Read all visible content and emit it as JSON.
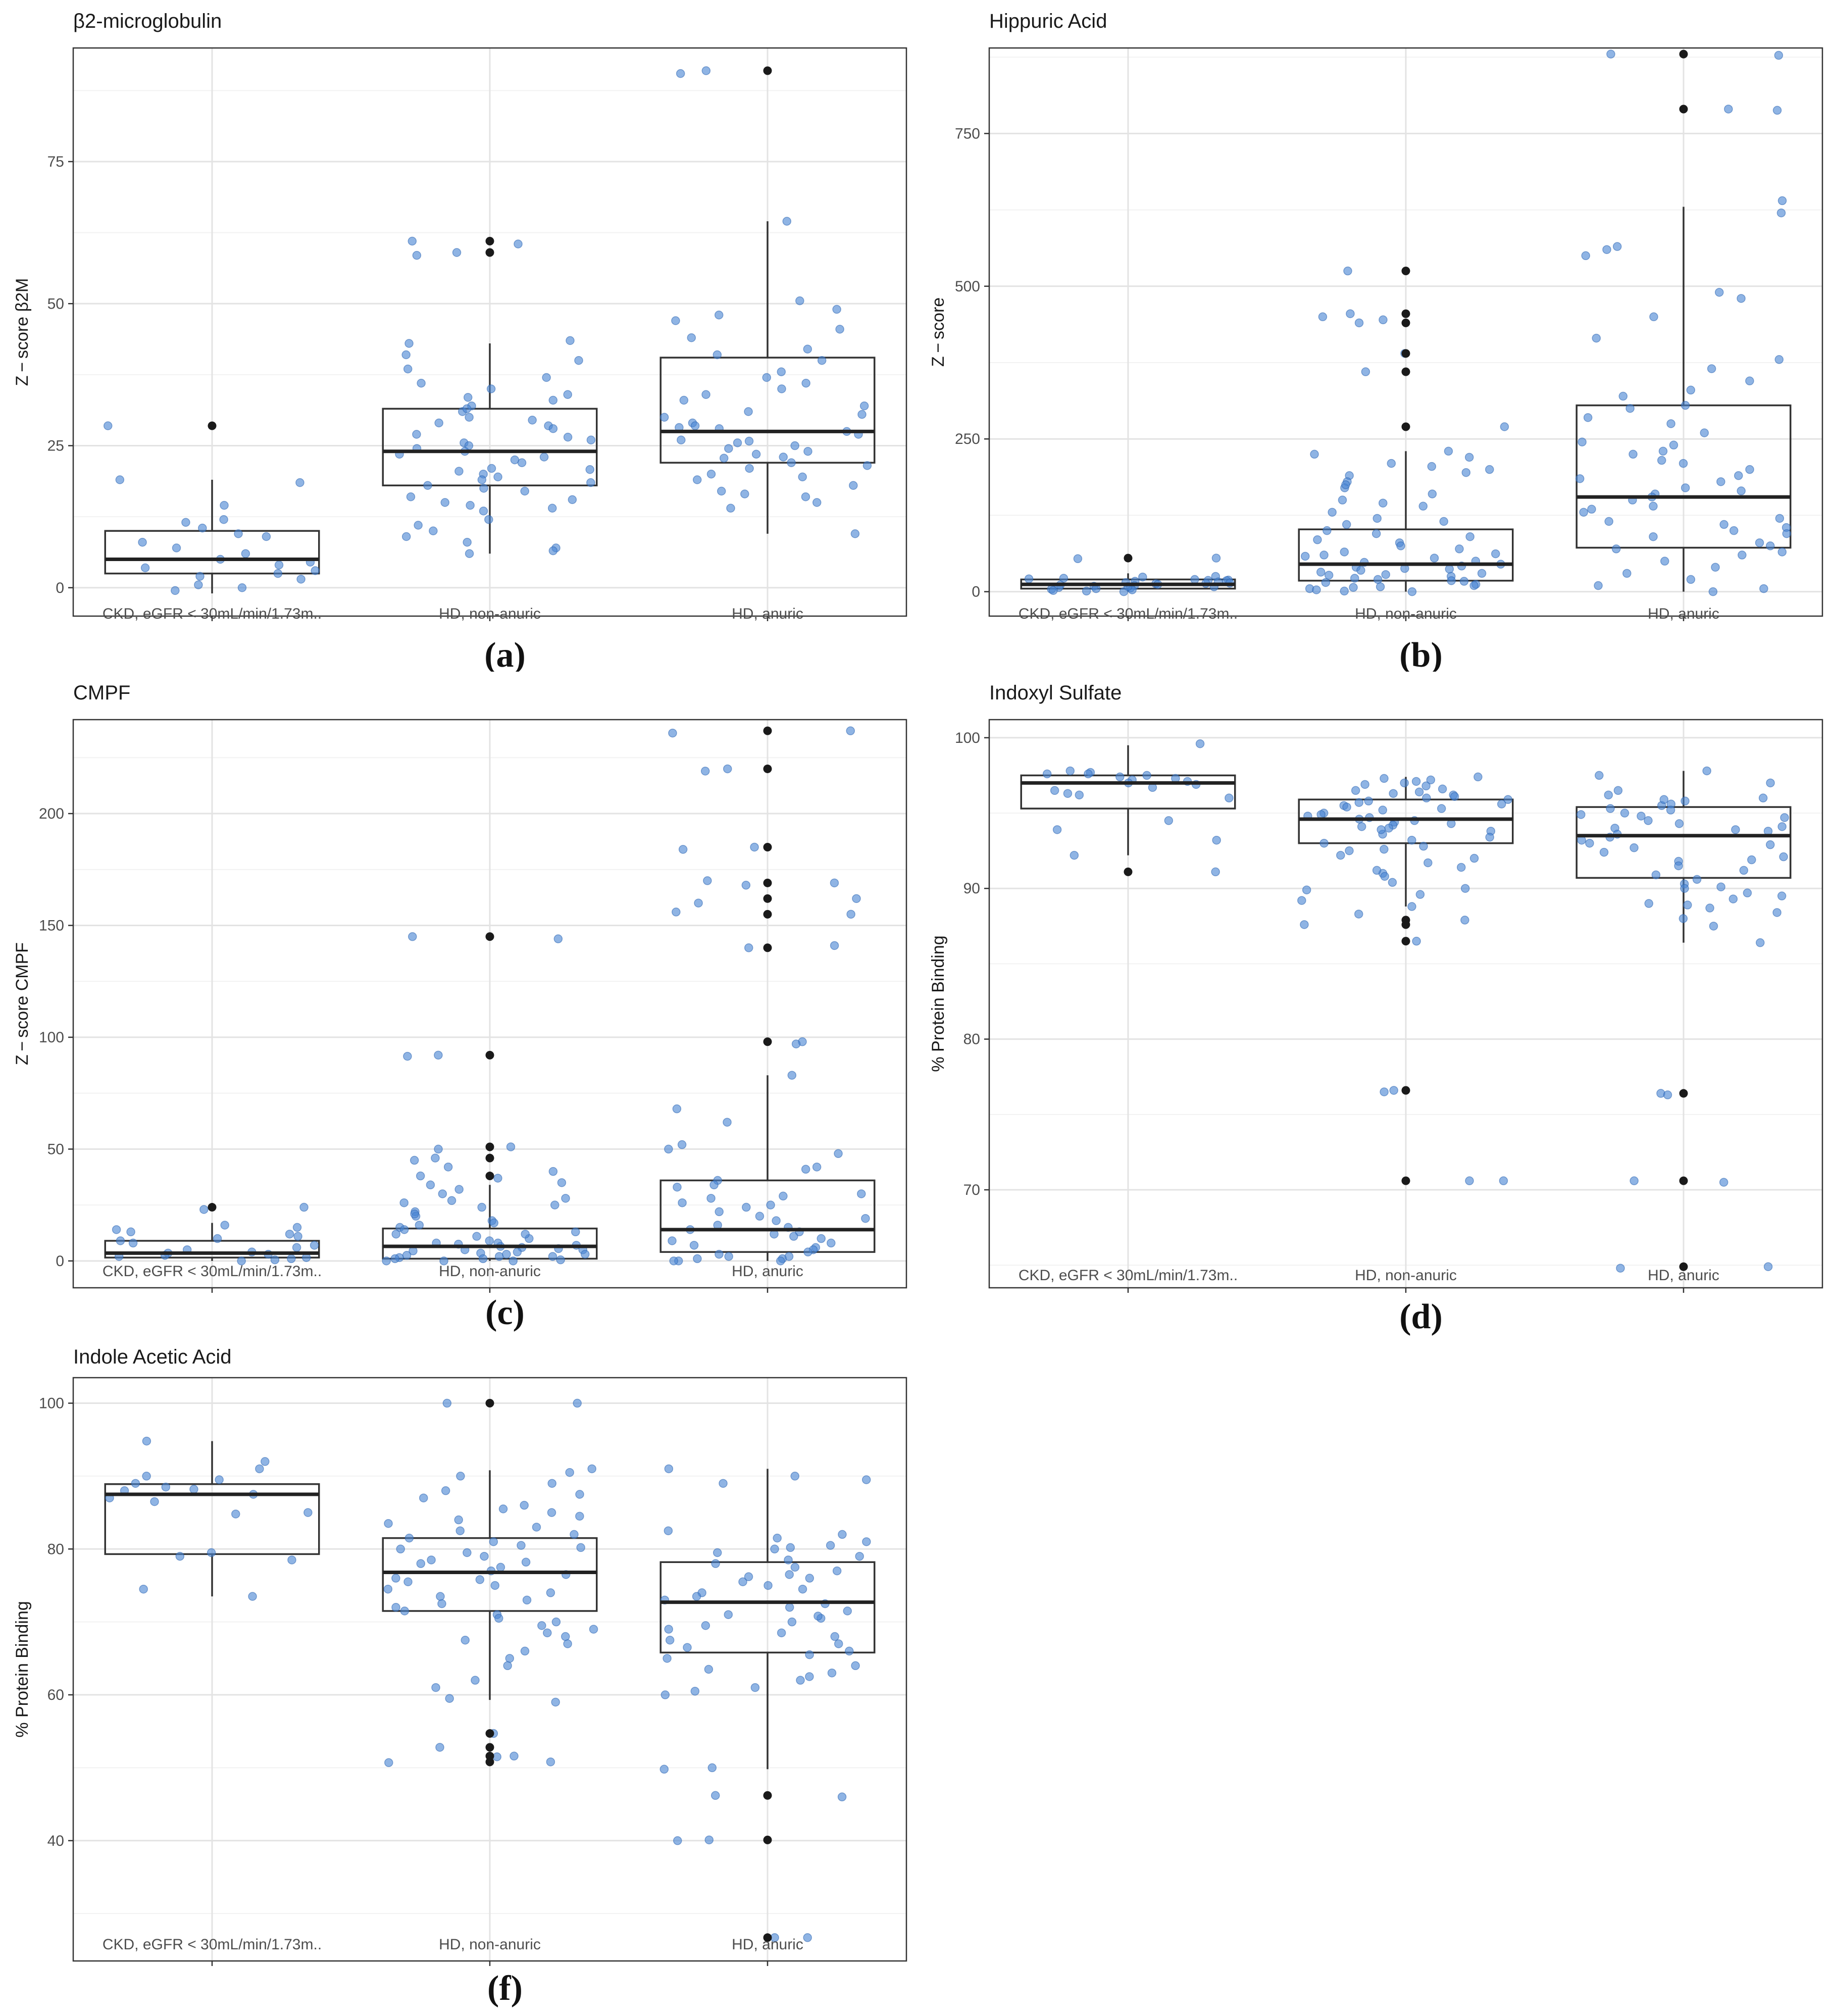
{
  "chart_data": [
    {
      "type": "boxplot",
      "title": "β2-microglobulin",
      "ylabel": "Z − score β2M",
      "xlabel": "",
      "categories": [
        "CKD, eGFR < 30mL/min/1.73m..",
        "HD, non-anuric",
        "HD, anuric"
      ],
      "ylim": [
        -5,
        95
      ],
      "yticks": [
        0,
        25,
        50,
        75
      ],
      "grid": true,
      "panel_label": "(a)",
      "boxes": [
        {
          "q1": 2.5,
          "median": 5,
          "q3": 10,
          "whisker_low": -1,
          "whisker_high": 19,
          "outliers": [
            28.5
          ]
        },
        {
          "q1": 18,
          "median": 24,
          "q3": 31.5,
          "whisker_low": 6,
          "whisker_high": 43,
          "outliers": [
            59,
            61
          ]
        },
        {
          "q1": 22,
          "median": 27.5,
          "q3": 40.5,
          "whisker_low": 9.5,
          "whisker_high": 64.5,
          "outliers": [
            91
          ]
        }
      ],
      "points": [
        [
          28.5,
          18.5,
          19,
          14.5,
          11.5,
          10.5,
          9.5,
          8,
          7,
          5,
          4.5,
          4,
          3.5,
          3,
          2.5,
          2,
          1.5,
          0.5,
          0,
          -0.5,
          9,
          12,
          6
        ],
        [
          61,
          59,
          58.5,
          60.5,
          43,
          43.5,
          40,
          38.5,
          37,
          36,
          35,
          34,
          33,
          32,
          31,
          30,
          29,
          28.5,
          28,
          27,
          26,
          25.5,
          25,
          24.5,
          24,
          23.5,
          23,
          22.5,
          22,
          21,
          20.5,
          20,
          19.5,
          19,
          18.5,
          18,
          17,
          16,
          15,
          14.5,
          14,
          13.5,
          12,
          11,
          10,
          9,
          8,
          7,
          6.5,
          6,
          29.5,
          31.5,
          26.5,
          33.5,
          41,
          20.8,
          17.5,
          15.5
        ],
        [
          91,
          90.5,
          64.5,
          50.5,
          49,
          48,
          47,
          45.5,
          44,
          42,
          40,
          38,
          36,
          35,
          33,
          32,
          31,
          30,
          29,
          28.5,
          28,
          27.5,
          27,
          26,
          25.5,
          25,
          24.5,
          24,
          23.5,
          23,
          22,
          21.5,
          21,
          20,
          19.5,
          19,
          18,
          17,
          16.5,
          16,
          15,
          14,
          9.5,
          34,
          37,
          41,
          25.8,
          28.2,
          30.5,
          22.8
        ]
      ]
    },
    {
      "type": "boxplot",
      "title": "Hippuric Acid",
      "ylabel": "Z − score",
      "xlabel": "",
      "categories": [
        "CKD, eGFR < 30mL/min/1.73m..",
        "HD, non-anuric",
        "HD, anuric"
      ],
      "ylim": [
        -40,
        890
      ],
      "yticks": [
        0,
        250,
        500,
        750
      ],
      "grid": true,
      "panel_label": "(b)",
      "boxes": [
        {
          "q1": 5,
          "median": 12,
          "q3": 20,
          "whisker_low": 0,
          "whisker_high": 30,
          "outliers": [
            55
          ]
        },
        {
          "q1": 18,
          "median": 45,
          "q3": 102,
          "whisker_low": 0,
          "whisker_high": 230,
          "outliers": [
            270,
            360,
            390,
            440,
            455,
            525
          ]
        },
        {
          "q1": 72,
          "median": 155,
          "q3": 305,
          "whisker_low": 0,
          "whisker_high": 630,
          "outliers": [
            790,
            880
          ]
        }
      ],
      "points": [
        [
          55,
          54,
          25,
          24,
          22,
          21,
          20,
          19,
          18,
          17,
          16,
          15,
          14,
          13,
          12,
          11,
          10,
          9,
          8,
          7,
          6,
          5,
          4,
          3,
          2,
          1,
          0,
          18.5,
          13.5,
          8.5
        ],
        [
          525,
          455,
          450,
          440,
          445,
          390,
          360,
          270,
          230,
          220,
          210,
          200,
          195,
          190,
          180,
          170,
          160,
          150,
          140,
          130,
          120,
          110,
          100,
          95,
          90,
          85,
          80,
          75,
          70,
          65,
          60,
          55,
          50,
          48,
          45,
          42,
          40,
          38,
          35,
          32,
          30,
          28,
          25,
          22,
          20,
          18,
          15,
          12,
          10,
          8,
          5,
          3,
          1,
          0,
          62,
          58,
          37,
          27,
          17,
          7,
          115,
          145,
          175,
          205,
          225
        ],
        [
          880,
          878,
          790,
          788,
          640,
          620,
          565,
          560,
          550,
          490,
          480,
          450,
          415,
          380,
          365,
          345,
          330,
          320,
          305,
          300,
          285,
          275,
          260,
          240,
          230,
          225,
          210,
          200,
          190,
          180,
          170,
          160,
          155,
          150,
          140,
          130,
          120,
          110,
          105,
          100,
          95,
          90,
          80,
          75,
          70,
          65,
          60,
          50,
          40,
          30,
          20,
          10,
          5,
          0,
          115,
          135,
          165,
          185,
          215,
          245
        ]
      ]
    },
    {
      "type": "boxplot",
      "title": "CMPF",
      "ylabel": "Z − score CMPF",
      "xlabel": "",
      "categories": [
        "CKD, eGFR < 30mL/min/1.73m..",
        "HD, non-anuric",
        "HD, anuric"
      ],
      "ylim": [
        -12,
        242
      ],
      "yticks": [
        0,
        50,
        100,
        150,
        200
      ],
      "grid": true,
      "panel_label": "(c)",
      "boxes": [
        {
          "q1": 1.5,
          "median": 3.5,
          "q3": 9,
          "whisker_low": 0,
          "whisker_high": 17,
          "outliers": [
            24
          ]
        },
        {
          "q1": 1,
          "median": 6.5,
          "q3": 14.5,
          "whisker_low": 0,
          "whisker_high": 34,
          "outliers": [
            38,
            46,
            51,
            92,
            145
          ]
        },
        {
          "q1": 4,
          "median": 14,
          "q3": 36,
          "whisker_low": 0,
          "whisker_high": 83,
          "outliers": [
            98,
            140,
            155,
            162,
            169,
            185,
            220,
            237
          ]
        }
      ],
      "points": [
        [
          24,
          23,
          16,
          15,
          13,
          12,
          10,
          9,
          8,
          7,
          6,
          5,
          4,
          3.5,
          3,
          2.5,
          2,
          1.5,
          1,
          0.5,
          0,
          11,
          14
        ],
        [
          145,
          144,
          92,
          91.5,
          51,
          50,
          46,
          45,
          38,
          37,
          34,
          32,
          30,
          28,
          26,
          24,
          22,
          20,
          18,
          16,
          15,
          14,
          13,
          12,
          11,
          10,
          9,
          8,
          7.5,
          7,
          6.5,
          6,
          5.5,
          5,
          4.5,
          4,
          3.5,
          3,
          2.5,
          2,
          1.5,
          1,
          0.5,
          0,
          0,
          0,
          1,
          2,
          3,
          5,
          8,
          12,
          17,
          21,
          25,
          27,
          35,
          40,
          42
        ],
        [
          237,
          236,
          220,
          219,
          185,
          184,
          170,
          169,
          168,
          162,
          160,
          156,
          155,
          141,
          140,
          98,
          97,
          83,
          68,
          62,
          52,
          50,
          48,
          42,
          41,
          36,
          34,
          30,
          28,
          26,
          25,
          22,
          20,
          18,
          16,
          15,
          14,
          13,
          12,
          10,
          9,
          8,
          7,
          6,
          5,
          4,
          3,
          2,
          1,
          0,
          0,
          0,
          1,
          2,
          11,
          19,
          24,
          29,
          33
        ]
      ]
    },
    {
      "type": "boxplot",
      "title": "Indoxyl Sulfate",
      "ylabel": "% Protein Binding",
      "xlabel": "",
      "categories": [
        "CKD, eGFR < 30mL/min/1.73m..",
        "HD, non-anuric",
        "HD, anuric"
      ],
      "ylim": [
        63.5,
        101.2
      ],
      "yticks": [
        70,
        80,
        90,
        100
      ],
      "grid": true,
      "panel_label": "(d)",
      "boxes": [
        {
          "q1": 95.3,
          "median": 97,
          "q3": 97.5,
          "whisker_low": 92.2,
          "whisker_high": 99.5,
          "outliers": [
            91.1
          ]
        },
        {
          "q1": 93,
          "median": 94.6,
          "q3": 95.9,
          "whisker_low": 88.8,
          "whisker_high": 97.4,
          "outliers": [
            86.5,
            87.6,
            87.9,
            76.6,
            70.6
          ]
        },
        {
          "q1": 90.7,
          "median": 93.5,
          "q3": 95.4,
          "whisker_low": 86.4,
          "whisker_high": 97.8,
          "outliers": [
            76.4,
            70.6,
            64.9
          ]
        }
      ],
      "points": [
        [
          99.6,
          97.8,
          97.7,
          97.6,
          97.5,
          97.4,
          97.3,
          97.2,
          97.1,
          97,
          96.9,
          96.7,
          96.5,
          96.3,
          96,
          94.5,
          93.9,
          93.2,
          92.2,
          91.1,
          97.6,
          96.2
        ],
        [
          97.4,
          97.3,
          97.2,
          97.1,
          97,
          96.9,
          96.8,
          96.6,
          96.5,
          96.4,
          96.3,
          96.2,
          96,
          95.9,
          95.8,
          95.6,
          95.5,
          95.4,
          95.2,
          95,
          94.9,
          94.8,
          94.7,
          94.6,
          94.5,
          94.4,
          94.2,
          94,
          93.8,
          93.6,
          93.4,
          93.2,
          93,
          92.8,
          92.5,
          92.2,
          92,
          91.7,
          91.4,
          91,
          90.8,
          90.4,
          90,
          89.6,
          89.2,
          88.8,
          88.3,
          87.9,
          87.6,
          86.5,
          76.6,
          76.5,
          70.6,
          70.6,
          96.1,
          95.3,
          94.3,
          93.9,
          92.6,
          91.2,
          89.9,
          95.7,
          94.1
        ],
        [
          97.8,
          97.5,
          97,
          96.5,
          96.2,
          96,
          95.8,
          95.6,
          95.5,
          95.3,
          95.2,
          95,
          94.9,
          94.7,
          94.5,
          94.3,
          94.1,
          94,
          93.8,
          93.6,
          93.4,
          93.2,
          93,
          92.7,
          92.4,
          92.1,
          91.8,
          91.5,
          91.2,
          90.9,
          90.6,
          90.3,
          90,
          89.7,
          89.5,
          89.3,
          89,
          88.7,
          88.4,
          88,
          87.5,
          86.4,
          76.4,
          76.3,
          70.6,
          70.5,
          64.9,
          64.8,
          95.9,
          94.8,
          93.9,
          92.9,
          91.9,
          90.1,
          88.9
        ]
      ]
    },
    {
      "type": "boxplot",
      "title": "Indole Acetic Acid",
      "ylabel": "% Protein Binding",
      "xlabel": "",
      "categories": [
        "CKD, eGFR < 30mL/min/1.73m..",
        "HD, non-anuric",
        "HD, anuric"
      ],
      "ylim": [
        23.5,
        103.5
      ],
      "yticks": [
        40,
        60,
        80,
        100
      ],
      "grid": true,
      "panel_label": "(f)",
      "boxes": [
        {
          "q1": 79.3,
          "median": 87.5,
          "q3": 88.9,
          "whisker_low": 73.5,
          "whisker_high": 94.8,
          "outliers": []
        },
        {
          "q1": 71.5,
          "median": 76.8,
          "q3": 81.5,
          "whisker_low": 59.3,
          "whisker_high": 90.8,
          "outliers": [
            100,
            54.7,
            52.8,
            51.6,
            50.8
          ]
        },
        {
          "q1": 65.8,
          "median": 72.7,
          "q3": 78.2,
          "whisker_low": 49.8,
          "whisker_high": 91,
          "outliers": [
            46.2,
            40.1,
            26.7
          ]
        }
      ],
      "points": [
        [
          94.8,
          92,
          91,
          90,
          89.5,
          89,
          88.5,
          88,
          87.5,
          87,
          86.5,
          85,
          79.5,
          79,
          78.5,
          74.5,
          73.5,
          88.2,
          84.8
        ],
        [
          100,
          100,
          91,
          90.5,
          90,
          89,
          88,
          87.5,
          87,
          86,
          85.5,
          85,
          84.5,
          84,
          83.5,
          83,
          82.5,
          82,
          81.5,
          81,
          80.5,
          80,
          79.5,
          79,
          78.5,
          78,
          77.5,
          77,
          76.5,
          76,
          75.5,
          75,
          74.5,
          74,
          73.5,
          73,
          72.5,
          72,
          71.5,
          71,
          70.5,
          70,
          69.5,
          69,
          68,
          67.5,
          67,
          66,
          65,
          64,
          62,
          61,
          59.5,
          59,
          54.7,
          52.8,
          51.6,
          51.5,
          50.8,
          50.7,
          80.2,
          78.2,
          75.8,
          68.5
        ],
        [
          91,
          90,
          89.5,
          89,
          82.5,
          82,
          81.5,
          81,
          80.5,
          80,
          79.5,
          79,
          78.5,
          78,
          77.5,
          77,
          76.5,
          76,
          75.5,
          75,
          74.5,
          74,
          73.5,
          73,
          72.5,
          72,
          71.5,
          71,
          70.5,
          70,
          69.5,
          69,
          68.5,
          68,
          67.5,
          67,
          66.5,
          66,
          65.5,
          65,
          64,
          63,
          62.5,
          62,
          61,
          60.5,
          60,
          50,
          49.8,
          46.2,
          46,
          40.1,
          40,
          26.7,
          26.7,
          80.2,
          76.2,
          70.8,
          63.5
        ]
      ]
    }
  ]
}
